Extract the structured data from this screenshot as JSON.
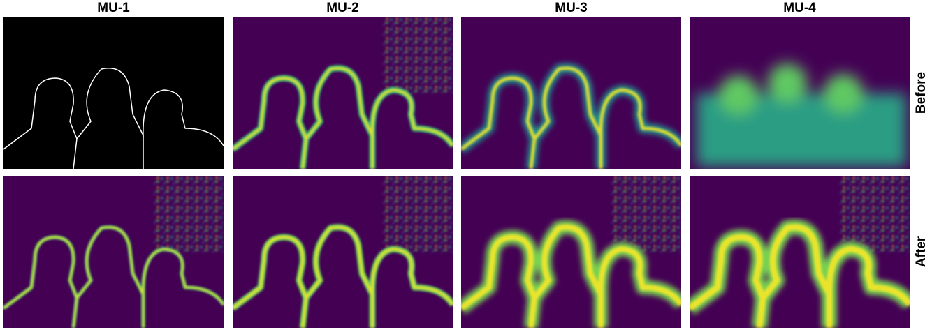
{
  "columns": [
    "MU-1",
    "MU-2",
    "MU-3",
    "MU-4"
  ],
  "rows": [
    "Before",
    "After"
  ]
}
